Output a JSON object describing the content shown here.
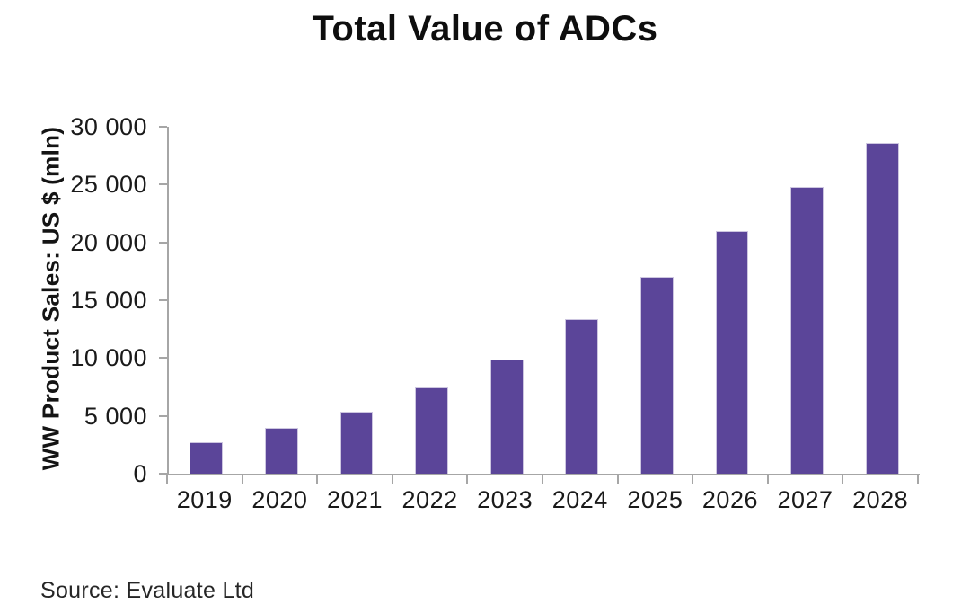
{
  "chart_data": {
    "type": "bar",
    "title": "Total Value of ADCs",
    "ylabel": "WW Product Sales: US $ (mln)",
    "xlabel": "",
    "categories": [
      "2019",
      "2020",
      "2021",
      "2022",
      "2023",
      "2024",
      "2025",
      "2026",
      "2027",
      "2028"
    ],
    "values": [
      2700,
      4000,
      5400,
      7500,
      9900,
      13400,
      17000,
      21000,
      24800,
      28600
    ],
    "series_name": "WW Product Sales",
    "ylim": [
      0,
      30000
    ],
    "ytick_values": [
      0,
      5000,
      10000,
      15000,
      20000,
      25000,
      30000
    ],
    "ytick_labels": [
      "0",
      "5 000",
      "10 000",
      "15 000",
      "20 000",
      "25 000",
      "30 000"
    ],
    "grid": false,
    "legend": "none",
    "bar_color": "#5b4599",
    "bar_border_color": "#cdc6e0",
    "axis_color": "#a6a6a6",
    "source": "Source: Evaluate Ltd"
  }
}
